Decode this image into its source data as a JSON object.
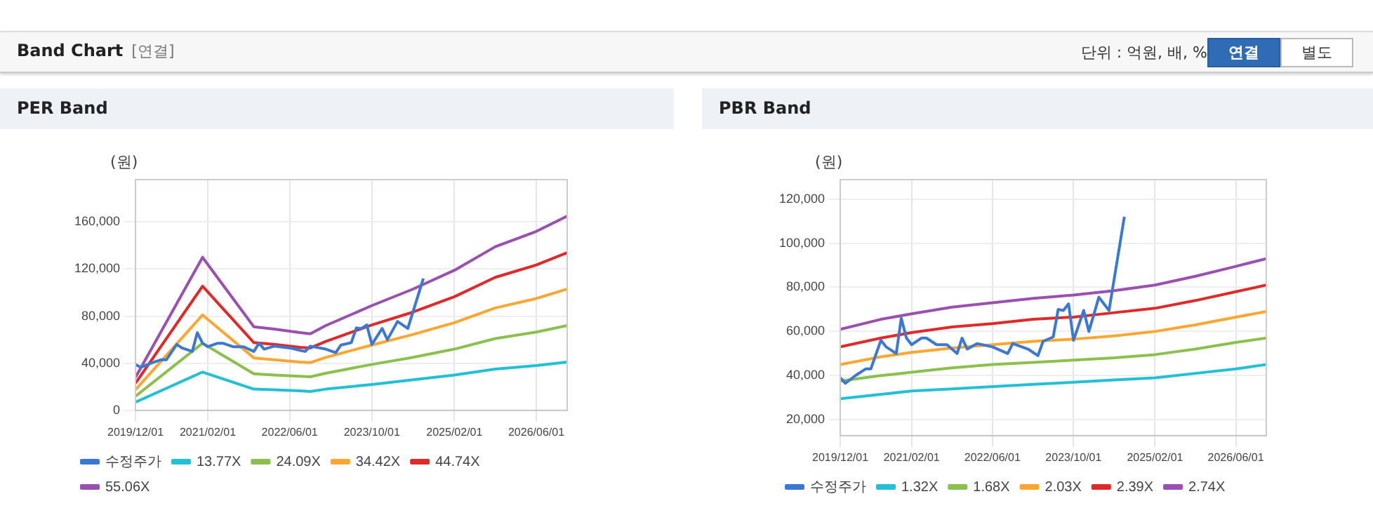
{
  "chart_data": [
    {
      "type": "other",
      "title": "Band Chart",
      "annotations": [
        "[연결]",
        "단위 : 억원, 배, %",
        "연결",
        "별도"
      ]
    },
    {
      "type": "line",
      "title": "PER Band",
      "ylabel": "(원)",
      "xlim": [
        "2019-12-01",
        "2026-12-01"
      ],
      "ylim": [
        0,
        196000
      ],
      "xticks": [
        {
          "value": "2019-12-01",
          "label": "2019/12/01"
        },
        {
          "value": "2021-02-01",
          "label": "2021/02/01"
        },
        {
          "value": "2022-06-01",
          "label": "2022/06/01"
        },
        {
          "value": "2023-10-01",
          "label": "2023/10/01"
        },
        {
          "value": "2025-02-01",
          "label": "2025/02/01"
        },
        {
          "value": "2026-06-01",
          "label": "2026/06/01"
        }
      ],
      "yticks": [
        0,
        {
          "value": 40000,
          "label": "40,000"
        },
        {
          "value": 80000,
          "label": "80,000"
        },
        {
          "value": 120000,
          "label": "120,000"
        },
        {
          "value": 160000,
          "label": "160,000"
        }
      ],
      "grid": true,
      "legend": "bottom",
      "series": [
        {
          "name": "수정주가",
          "color": "#3b78d4",
          "x": [
            "2019-12",
            "2020-01",
            "2020-03",
            "2020-05",
            "2020-06",
            "2020-08",
            "2020-09",
            "2020-11",
            "2020-12",
            "2021-01",
            "2021-02",
            "2021-04",
            "2021-05",
            "2021-07",
            "2021-09",
            "2021-11",
            "2021-12",
            "2022-01",
            "2022-03",
            "2022-06",
            "2022-08",
            "2022-09",
            "2022-10",
            "2023-01",
            "2023-03",
            "2023-04",
            "2023-06",
            "2023-07",
            "2023-08",
            "2023-09",
            "2023-10",
            "2023-12",
            "2024-01",
            "2024-03",
            "2024-05",
            "2024-08"
          ],
          "values": [
            39000,
            36500,
            40000,
            43000,
            43000,
            56000,
            53000,
            50000,
            66000,
            57000,
            54000,
            57000,
            57000,
            54000,
            54000,
            50000,
            57000,
            52000,
            54500,
            53000,
            51000,
            50000,
            54500,
            52000,
            49000,
            55500,
            57500,
            70000,
            69500,
            72500,
            56000,
            69500,
            60000,
            75500,
            69500,
            112000
          ]
        },
        {
          "name": "13.77X",
          "color": "#22c0d6",
          "x": [
            "2019-12",
            "2021-01",
            "2021-11",
            "2022-03",
            "2022-08",
            "2022-10",
            "2023-01",
            "2023-10",
            "2024-06",
            "2025-02",
            "2025-10",
            "2026-06",
            "2026-12"
          ],
          "values": [
            7000,
            32500,
            18000,
            17500,
            16500,
            16000,
            18000,
            22000,
            26000,
            30000,
            35000,
            38000,
            41000
          ]
        },
        {
          "name": "24.09X",
          "color": "#8cc04c",
          "x": [
            "2019-12",
            "2021-01",
            "2021-11",
            "2022-03",
            "2022-08",
            "2022-10",
            "2023-01",
            "2023-10",
            "2024-06",
            "2025-02",
            "2025-10",
            "2026-06",
            "2026-12"
          ],
          "values": [
            12000,
            57000,
            31000,
            30000,
            29000,
            28500,
            31500,
            39000,
            45000,
            52000,
            61000,
            66500,
            72000
          ]
        },
        {
          "name": "34.42X",
          "color": "#ffa630",
          "x": [
            "2019-12",
            "2021-01",
            "2021-11",
            "2022-03",
            "2022-08",
            "2022-10",
            "2023-01",
            "2023-10",
            "2024-06",
            "2025-02",
            "2025-10",
            "2026-06",
            "2026-12"
          ],
          "values": [
            17500,
            81000,
            44500,
            43000,
            41000,
            40500,
            45000,
            55500,
            64500,
            74500,
            87000,
            95000,
            103000
          ]
        },
        {
          "name": "44.74X",
          "color": "#e02a2a",
          "x": [
            "2019-12",
            "2021-01",
            "2021-11",
            "2022-03",
            "2022-08",
            "2022-10",
            "2023-01",
            "2023-10",
            "2024-06",
            "2025-02",
            "2025-10",
            "2026-06",
            "2026-12"
          ],
          "values": [
            23000,
            105500,
            57500,
            56000,
            53500,
            53000,
            58500,
            72500,
            83500,
            96500,
            113000,
            123500,
            134000
          ]
        },
        {
          "name": "55.06X",
          "color": "#9b4fb0",
          "x": [
            "2019-12",
            "2021-01",
            "2021-11",
            "2022-03",
            "2022-08",
            "2022-10",
            "2023-01",
            "2023-10",
            "2024-06",
            "2025-02",
            "2025-10",
            "2026-06",
            "2026-12"
          ],
          "values": [
            28000,
            130000,
            71000,
            69000,
            66000,
            65000,
            72000,
            89000,
            103000,
            119000,
            139000,
            152000,
            165000
          ]
        }
      ]
    },
    {
      "type": "line",
      "title": "PBR Band",
      "ylabel": "(원)",
      "xlim": [
        "2019-12-01",
        "2026-12-01"
      ],
      "ylim": [
        12800,
        128800
      ],
      "xticks": [
        {
          "value": "2019-12-01",
          "label": "2019/12/01"
        },
        {
          "value": "2021-02-01",
          "label": "2021/02/01"
        },
        {
          "value": "2022-06-01",
          "label": "2022/06/01"
        },
        {
          "value": "2023-10-01",
          "label": "2023/10/01"
        },
        {
          "value": "2025-02-01",
          "label": "2025/02/01"
        },
        {
          "value": "2026-06-01",
          "label": "2026/06/01"
        }
      ],
      "yticks": [
        {
          "value": 20000,
          "label": "20,000"
        },
        {
          "value": 40000,
          "label": "40,000"
        },
        {
          "value": 60000,
          "label": "60,000"
        },
        {
          "value": 80000,
          "label": "80,000"
        },
        {
          "value": 100000,
          "label": "100,000"
        },
        {
          "value": 120000,
          "label": "120,000"
        }
      ],
      "grid": true,
      "legend": "bottom",
      "series": [
        {
          "name": "수정주가",
          "color": "#3b78d4",
          "x": [
            "2019-12",
            "2020-01",
            "2020-03",
            "2020-05",
            "2020-06",
            "2020-08",
            "2020-09",
            "2020-11",
            "2020-12",
            "2021-01",
            "2021-02",
            "2021-04",
            "2021-05",
            "2021-07",
            "2021-09",
            "2021-11",
            "2021-12",
            "2022-01",
            "2022-03",
            "2022-06",
            "2022-08",
            "2022-09",
            "2022-10",
            "2023-01",
            "2023-03",
            "2023-04",
            "2023-06",
            "2023-07",
            "2023-08",
            "2023-09",
            "2023-10",
            "2023-12",
            "2024-01",
            "2024-03",
            "2024-05",
            "2024-08"
          ],
          "values": [
            39000,
            36500,
            40000,
            43000,
            43000,
            56000,
            53000,
            50000,
            66000,
            57000,
            54000,
            57000,
            57000,
            54000,
            54000,
            50000,
            57000,
            52000,
            54500,
            53000,
            51000,
            50000,
            54500,
            52000,
            49000,
            55500,
            57500,
            70000,
            69500,
            72500,
            56000,
            69500,
            60000,
            75500,
            69500,
            112000
          ]
        },
        {
          "name": "1.32X",
          "color": "#22c0d6",
          "x": [
            "2019-12",
            "2020-08",
            "2021-02",
            "2021-10",
            "2022-06",
            "2023-02",
            "2023-10",
            "2024-06",
            "2025-02",
            "2025-10",
            "2026-06",
            "2026-12"
          ],
          "values": [
            29500,
            31500,
            33000,
            34000,
            35000,
            36000,
            37000,
            38000,
            39000,
            41000,
            43000,
            45000
          ]
        },
        {
          "name": "1.68X",
          "color": "#8cc04c",
          "x": [
            "2019-12",
            "2020-08",
            "2021-02",
            "2021-10",
            "2022-06",
            "2023-02",
            "2023-10",
            "2024-06",
            "2025-02",
            "2025-10",
            "2026-06",
            "2026-12"
          ],
          "values": [
            37500,
            40000,
            41500,
            43500,
            45000,
            46000,
            47000,
            48000,
            49500,
            52000,
            55000,
            57000
          ]
        },
        {
          "name": "2.03X",
          "color": "#ffa630",
          "x": [
            "2019-12",
            "2020-08",
            "2021-02",
            "2021-10",
            "2022-06",
            "2023-02",
            "2023-10",
            "2024-06",
            "2025-02",
            "2025-10",
            "2026-06",
            "2026-12"
          ],
          "values": [
            45000,
            48500,
            50500,
            52500,
            54000,
            55500,
            56500,
            58000,
            60000,
            63000,
            66500,
            69000
          ]
        },
        {
          "name": "2.39X",
          "color": "#e02a2a",
          "x": [
            "2019-12",
            "2020-08",
            "2021-02",
            "2021-10",
            "2022-06",
            "2023-02",
            "2023-10",
            "2024-06",
            "2025-02",
            "2025-10",
            "2026-06",
            "2026-12"
          ],
          "values": [
            53000,
            57000,
            59500,
            62000,
            63500,
            65500,
            66500,
            68500,
            70500,
            74000,
            78000,
            81000
          ]
        },
        {
          "name": "2.74X",
          "color": "#9b4fb0",
          "x": [
            "2019-12",
            "2020-08",
            "2021-02",
            "2021-10",
            "2022-06",
            "2023-02",
            "2023-10",
            "2024-06",
            "2025-02",
            "2025-10",
            "2026-06",
            "2026-12"
          ],
          "values": [
            61000,
            65500,
            68000,
            71000,
            73000,
            75000,
            76500,
            78500,
            81000,
            85000,
            89500,
            93000
          ]
        }
      ]
    }
  ]
}
